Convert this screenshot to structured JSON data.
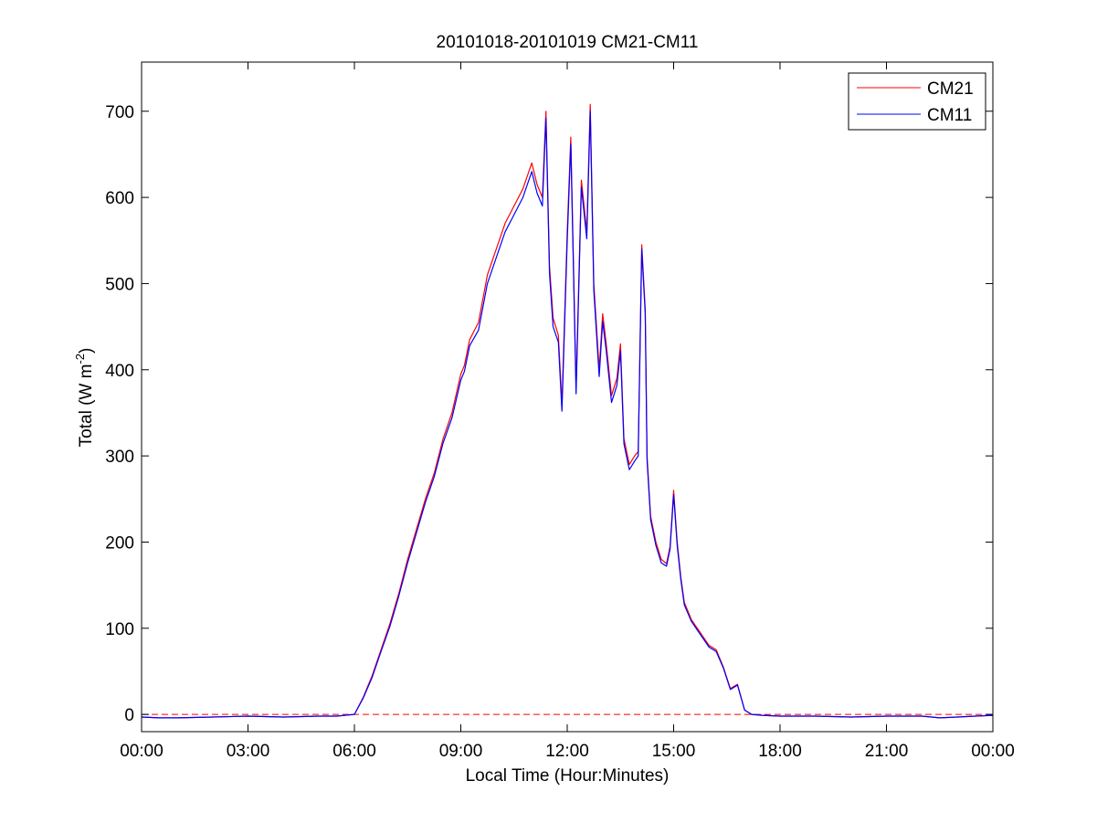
{
  "chart_data": {
    "type": "line",
    "title": "20101018-20101019 CM21-CM11",
    "xlabel": "Local Time (Hour:Minutes)",
    "ylabel": "Total (W m-2)",
    "ylabel_parts": {
      "main": "Total (W m",
      "exponent": "-2",
      "close": ")"
    },
    "xlim_hours": [
      0,
      24
    ],
    "ylim": [
      -20,
      757
    ],
    "x_ticks": [
      {
        "hour": 0,
        "label": "00:00"
      },
      {
        "hour": 3,
        "label": "03:00"
      },
      {
        "hour": 6,
        "label": "06:00"
      },
      {
        "hour": 9,
        "label": "09:00"
      },
      {
        "hour": 12,
        "label": "12:00"
      },
      {
        "hour": 15,
        "label": "15:00"
      },
      {
        "hour": 18,
        "label": "18:00"
      },
      {
        "hour": 21,
        "label": "21:00"
      },
      {
        "hour": 24,
        "label": "00:00"
      }
    ],
    "y_ticks": [
      0,
      100,
      200,
      300,
      400,
      500,
      600,
      700
    ],
    "grid": false,
    "legend_position": "top-right",
    "reference_line": {
      "y": 0,
      "style": "dashed",
      "color": "#ff0000"
    },
    "series": [
      {
        "name": "CM21",
        "color": "#ff0000",
        "x": [
          0,
          0.5,
          1,
          2,
          3,
          4,
          5,
          5.5,
          6,
          6.25,
          6.5,
          6.75,
          7,
          7.25,
          7.5,
          7.75,
          8,
          8.25,
          8.5,
          8.75,
          9,
          9.1,
          9.25,
          9.5,
          9.75,
          10,
          10.25,
          10.5,
          10.75,
          11,
          11.15,
          11.3,
          11.4,
          11.5,
          11.6,
          11.75,
          11.85,
          12,
          12.1,
          12.25,
          12.4,
          12.55,
          12.65,
          12.75,
          12.9,
          13,
          13.1,
          13.25,
          13.4,
          13.5,
          13.6,
          13.75,
          13.9,
          14,
          14.1,
          14.2,
          14.25,
          14.35,
          14.5,
          14.65,
          14.8,
          14.9,
          15,
          15.1,
          15.2,
          15.3,
          15.5,
          15.75,
          16,
          16.2,
          16.4,
          16.6,
          16.8,
          17,
          17.2,
          17.5,
          18,
          19,
          20,
          21,
          22,
          22.5,
          23,
          23.5,
          24
        ],
        "y": [
          -3,
          -4,
          -4,
          -3,
          -2,
          -3,
          -2,
          -2,
          0,
          20,
          45,
          75,
          105,
          140,
          180,
          215,
          250,
          280,
          320,
          350,
          395,
          405,
          435,
          455,
          510,
          540,
          570,
          590,
          610,
          640,
          615,
          600,
          700,
          520,
          460,
          440,
          360,
          560,
          670,
          380,
          620,
          560,
          708,
          500,
          400,
          465,
          430,
          370,
          390,
          430,
          320,
          290,
          300,
          305,
          545,
          470,
          300,
          230,
          200,
          180,
          175,
          195,
          260,
          200,
          160,
          130,
          110,
          95,
          80,
          75,
          55,
          30,
          35,
          5,
          0,
          -1,
          -2,
          -2,
          -3,
          -2,
          -2,
          -4,
          -3,
          -2,
          -1
        ]
      },
      {
        "name": "CM11",
        "color": "#0000ff",
        "x": [
          0,
          0.5,
          1,
          2,
          3,
          4,
          5,
          5.5,
          6,
          6.25,
          6.5,
          6.75,
          7,
          7.25,
          7.5,
          7.75,
          8,
          8.25,
          8.5,
          8.75,
          9,
          9.1,
          9.25,
          9.5,
          9.75,
          10,
          10.25,
          10.5,
          10.75,
          11,
          11.15,
          11.3,
          11.4,
          11.5,
          11.6,
          11.75,
          11.85,
          12,
          12.1,
          12.25,
          12.4,
          12.55,
          12.65,
          12.75,
          12.9,
          13,
          13.1,
          13.25,
          13.4,
          13.5,
          13.6,
          13.75,
          13.9,
          14,
          14.1,
          14.2,
          14.25,
          14.35,
          14.5,
          14.65,
          14.8,
          14.9,
          15,
          15.1,
          15.2,
          15.3,
          15.5,
          15.75,
          16,
          16.2,
          16.4,
          16.6,
          16.8,
          17,
          17.2,
          17.5,
          18,
          19,
          20,
          21,
          22,
          22.5,
          23,
          23.5,
          24
        ],
        "y": [
          -3,
          -4,
          -4,
          -3,
          -2,
          -3,
          -2,
          -2,
          0,
          19,
          43,
          73,
          102,
          137,
          176,
          211,
          246,
          276,
          315,
          344,
          388,
          398,
          428,
          446,
          500,
          530,
          560,
          580,
          600,
          630,
          605,
          590,
          692,
          512,
          450,
          432,
          352,
          550,
          662,
          372,
          612,
          552,
          700,
          492,
          392,
          456,
          422,
          362,
          382,
          422,
          314,
          284,
          294,
          300,
          540,
          465,
          295,
          226,
          196,
          176,
          172,
          192,
          255,
          196,
          157,
          127,
          108,
          93,
          78,
          73,
          54,
          29,
          34,
          5,
          0,
          -1,
          -2,
          -2,
          -3,
          -2,
          -2,
          -4,
          -3,
          -2,
          -1
        ]
      }
    ]
  }
}
